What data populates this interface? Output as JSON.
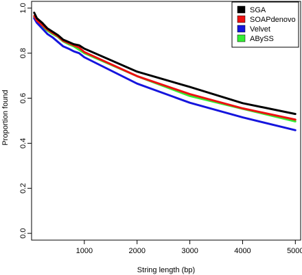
{
  "chart_data": {
    "type": "line",
    "title": "",
    "xlabel": "String length (bp)",
    "ylabel": "Proportion found",
    "xlim": [
      0,
      5100
    ],
    "ylim": [
      -0.03,
      1.03
    ],
    "x_ticks": [
      1000,
      2000,
      3000,
      4000,
      5000
    ],
    "y_ticks": [
      0.0,
      0.2,
      0.4,
      0.6,
      0.8,
      1.0
    ],
    "x_tick_labels": [
      "1000",
      "2000",
      "3000",
      "4000",
      "5000"
    ],
    "y_tick_labels": [
      "0.0",
      "0.2",
      "0.4",
      "0.6",
      "0.8",
      "1.0"
    ],
    "grid": false,
    "legend_position": "top-right",
    "x": [
      50,
      100,
      200,
      300,
      400,
      500,
      600,
      700,
      800,
      900,
      1000,
      2000,
      3000,
      4000,
      5000
    ],
    "series": [
      {
        "name": "SGA",
        "color": "#000000",
        "values": [
          0.98,
          0.955,
          0.935,
          0.91,
          0.895,
          0.88,
          0.86,
          0.85,
          0.84,
          0.835,
          0.82,
          0.718,
          0.65,
          0.578,
          0.53
        ]
      },
      {
        "name": "SOAPdenovo",
        "color": "#ee1111",
        "values": [
          0.965,
          0.945,
          0.925,
          0.905,
          0.89,
          0.875,
          0.855,
          0.845,
          0.835,
          0.825,
          0.805,
          0.698,
          0.618,
          0.555,
          0.505
        ]
      },
      {
        "name": "Velvet",
        "color": "#1515dd",
        "values": [
          0.955,
          0.935,
          0.91,
          0.885,
          0.87,
          0.85,
          0.83,
          0.82,
          0.808,
          0.8,
          0.782,
          0.665,
          0.58,
          0.515,
          0.458
        ]
      },
      {
        "name": "ABySS",
        "color": "#33ee33",
        "values": [
          0.96,
          0.945,
          0.92,
          0.9,
          0.885,
          0.872,
          0.852,
          0.84,
          0.83,
          0.815,
          0.8,
          0.698,
          0.61,
          0.553,
          0.497
        ]
      }
    ]
  }
}
